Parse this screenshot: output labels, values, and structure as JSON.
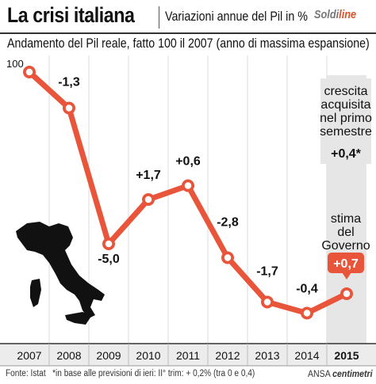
{
  "header": {
    "title": "La crisi italiana",
    "subtitle": "Variazioni annue del Pil in %",
    "brand_a": "Soldi",
    "brand_b": "line"
  },
  "subtitle": "Andamento del Pil reale, fatto 100 il 2007 (anno di massima espansione)",
  "note_box": {
    "text_lines": [
      "crescita",
      "acquisita",
      "nel primo",
      "semestre"
    ],
    "value": "+0,4*"
  },
  "estimate": {
    "text_lines": [
      "stima",
      "del",
      "Governo"
    ],
    "value": "+0,7"
  },
  "map_label": "italy-map",
  "footer": {
    "source": "Fonte: Istat",
    "note": "*in base alle previsioni di ieri: II° trim: + 0,2% (tra 0 e 0,4)",
    "credit_a": "ANSA",
    "credit_b": "centimetri"
  },
  "colors": {
    "line": "#e8553a",
    "marker_fill": "#ffffff",
    "grid": "#dddddd",
    "highlight_col": "#e6e6e6",
    "axis_band": "#ececec",
    "label_box": "#e8553a"
  },
  "chart_data": {
    "type": "line",
    "title": "La crisi italiana",
    "subtitle": "Variazioni annue del Pil in %",
    "categories": [
      "2007",
      "2008",
      "2009",
      "2010",
      "2011",
      "2012",
      "2013",
      "2014",
      "2015"
    ],
    "index_values": [
      100,
      98.7,
      93.8,
      95.4,
      95.9,
      93.3,
      91.7,
      91.3,
      92.0
    ],
    "point_labels": [
      "100",
      "-1,3",
      "-5,0",
      "+1,7",
      "+0,6",
      "-2,8",
      "-1,7",
      "-0,4",
      "+0,7"
    ],
    "y_tick_label": "100",
    "ylim": [
      90.2,
      100.6
    ],
    "grid": "vertical",
    "highlight_category": "2015"
  }
}
